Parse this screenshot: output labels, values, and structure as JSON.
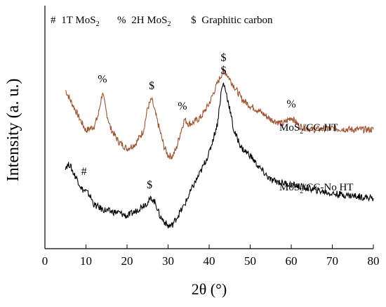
{
  "chart_data": {
    "type": "line",
    "title": "",
    "xlabel": "2θ (°)",
    "ylabel": "Intensity (a. u.)",
    "xlim": [
      0,
      80
    ],
    "xticks": [
      0,
      10,
      20,
      30,
      40,
      50,
      60,
      70,
      80
    ],
    "y_ticks_shown": false,
    "grid": false,
    "legend": {
      "placement": "top-left",
      "entries": [
        {
          "symbol": "#",
          "text": "1T MoS",
          "sub": "2"
        },
        {
          "symbol": "%",
          "text": "2H MoS",
          "sub": "2"
        },
        {
          "symbol": "$",
          "text": "Graphitic carbon",
          "sub": ""
        }
      ]
    },
    "series": [
      {
        "name_parts": [
          "MoS",
          "2",
          "/CC-HT"
        ],
        "color": "#a0522d",
        "x": [
          5,
          8,
          10,
          12,
          13,
          14,
          15,
          16,
          18,
          20,
          22,
          24,
          25,
          26,
          27,
          28,
          29,
          30,
          31,
          32,
          33,
          34,
          35,
          36,
          38,
          40,
          42,
          43,
          43.5,
          44,
          45,
          46,
          48,
          50,
          52,
          55,
          58,
          60,
          62,
          65,
          70,
          75,
          80
        ],
        "y": [
          0.86,
          0.64,
          0.5,
          0.54,
          0.64,
          0.84,
          0.66,
          0.52,
          0.4,
          0.34,
          0.38,
          0.5,
          0.7,
          0.78,
          0.64,
          0.5,
          0.36,
          0.28,
          0.27,
          0.34,
          0.48,
          0.6,
          0.56,
          0.57,
          0.62,
          0.74,
          0.92,
          1.0,
          1.03,
          1.02,
          0.96,
          0.9,
          0.78,
          0.72,
          0.68,
          0.6,
          0.56,
          0.62,
          0.54,
          0.51,
          0.52,
          0.51,
          0.51
        ]
      },
      {
        "name_parts": [
          "MoS",
          "2",
          "/CC-No HT"
        ],
        "color": "#000000",
        "x": [
          5,
          6,
          7,
          8,
          9,
          10,
          11,
          12,
          14,
          16,
          18,
          20,
          22,
          24,
          25,
          26,
          27,
          28,
          30,
          31,
          32,
          34,
          36,
          38,
          40,
          42,
          43,
          43.5,
          44,
          45,
          46,
          48,
          50,
          52,
          55,
          60,
          65,
          70,
          75,
          80
        ],
        "y": [
          0.18,
          0.2,
          0.12,
          0.06,
          -0.02,
          -0.04,
          -0.08,
          -0.16,
          -0.2,
          -0.22,
          -0.23,
          -0.26,
          -0.22,
          -0.16,
          -0.14,
          -0.1,
          -0.15,
          -0.26,
          -0.35,
          -0.34,
          -0.28,
          -0.16,
          0.0,
          0.14,
          0.3,
          0.56,
          0.86,
          0.92,
          0.86,
          0.7,
          0.5,
          0.34,
          0.28,
          0.18,
          0.06,
          0.02,
          -0.02,
          -0.06,
          -0.08,
          -0.1
        ]
      }
    ],
    "annotations": [
      {
        "text": "%",
        "x": 14,
        "series": 0
      },
      {
        "text": "$",
        "x": 26,
        "series": 0
      },
      {
        "text": "%",
        "x": 33.5,
        "series": 0
      },
      {
        "text": "$",
        "x": 43.5,
        "series": 0
      },
      {
        "text": "%",
        "x": 60,
        "series": 0
      },
      {
        "text": "#",
        "x": 9.5,
        "series": 1
      },
      {
        "text": "$",
        "x": 25.5,
        "series": 1
      },
      {
        "text": "$",
        "x": 43.5,
        "series": 1
      }
    ]
  }
}
